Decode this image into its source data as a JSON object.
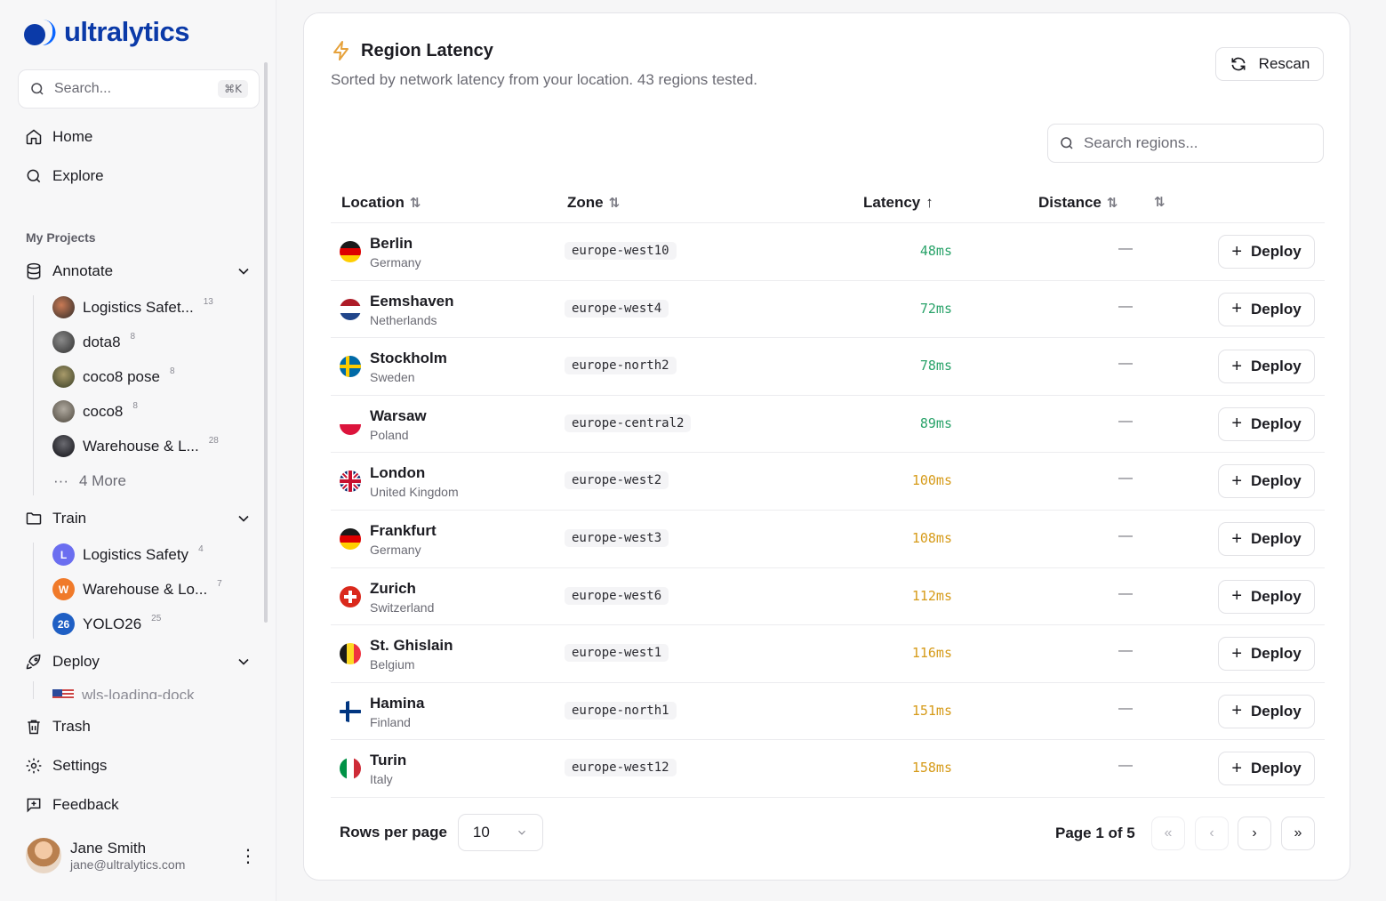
{
  "app": {
    "name": "ultralytics"
  },
  "sidebar": {
    "search_placeholder": "Search...",
    "search_shortcut": "⌘K",
    "nav": [
      {
        "label": "Home",
        "icon": "home-icon"
      },
      {
        "label": "Explore",
        "icon": "search-icon"
      }
    ],
    "section_label": "My Projects",
    "annotate": {
      "label": "Annotate",
      "items": [
        {
          "label": "Logistics Safet...",
          "count": "13"
        },
        {
          "label": "dota8",
          "count": "8"
        },
        {
          "label": "coco8 pose",
          "count": "8"
        },
        {
          "label": "coco8",
          "count": "8"
        },
        {
          "label": "Warehouse & L...",
          "count": "28"
        }
      ],
      "more_label": "4 More"
    },
    "train": {
      "label": "Train",
      "items": [
        {
          "label": "Logistics Safety",
          "count": "4",
          "badge": "L",
          "color": "#6b6ef0"
        },
        {
          "label": "Warehouse & Lo...",
          "count": "7",
          "badge": "W",
          "color": "#f07a2a"
        },
        {
          "label": "YOLO26",
          "count": "25",
          "badge": "26",
          "color": "#1f5fc4"
        }
      ]
    },
    "deploy": {
      "label": "Deploy",
      "items": [
        {
          "label": "wls-loading-dock"
        }
      ]
    },
    "bottom_nav": [
      {
        "label": "Trash"
      },
      {
        "label": "Settings"
      },
      {
        "label": "Feedback"
      }
    ],
    "user": {
      "name": "Jane Smith",
      "email": "jane@ultralytics.com"
    }
  },
  "main": {
    "title": "Region Latency",
    "subtitle": "Sorted by network latency from your location. 43 regions tested.",
    "rescan_label": "Rescan",
    "region_search_placeholder": "Search regions...",
    "columns": [
      "Location",
      "Zone",
      "Latency",
      "Distance"
    ],
    "rows": [
      {
        "city": "Berlin",
        "country": "Germany",
        "zone": "europe-west10",
        "latency": "48ms",
        "distance": "—",
        "tier": "good",
        "flag": "de"
      },
      {
        "city": "Eemshaven",
        "country": "Netherlands",
        "zone": "europe-west4",
        "latency": "72ms",
        "distance": "—",
        "tier": "good",
        "flag": "nl"
      },
      {
        "city": "Stockholm",
        "country": "Sweden",
        "zone": "europe-north2",
        "latency": "78ms",
        "distance": "—",
        "tier": "good",
        "flag": "se"
      },
      {
        "city": "Warsaw",
        "country": "Poland",
        "zone": "europe-central2",
        "latency": "89ms",
        "distance": "—",
        "tier": "good",
        "flag": "pl"
      },
      {
        "city": "London",
        "country": "United Kingdom",
        "zone": "europe-west2",
        "latency": "100ms",
        "distance": "—",
        "tier": "mid",
        "flag": "gb"
      },
      {
        "city": "Frankfurt",
        "country": "Germany",
        "zone": "europe-west3",
        "latency": "108ms",
        "distance": "—",
        "tier": "mid",
        "flag": "de"
      },
      {
        "city": "Zurich",
        "country": "Switzerland",
        "zone": "europe-west6",
        "latency": "112ms",
        "distance": "—",
        "tier": "mid",
        "flag": "ch"
      },
      {
        "city": "St. Ghislain",
        "country": "Belgium",
        "zone": "europe-west1",
        "latency": "116ms",
        "distance": "—",
        "tier": "mid",
        "flag": "be"
      },
      {
        "city": "Hamina",
        "country": "Finland",
        "zone": "europe-north1",
        "latency": "151ms",
        "distance": "—",
        "tier": "mid",
        "flag": "fi"
      },
      {
        "city": "Turin",
        "country": "Italy",
        "zone": "europe-west12",
        "latency": "158ms",
        "distance": "—",
        "tier": "mid",
        "flag": "it"
      }
    ],
    "deploy_label": "Deploy",
    "rows_per_page_label": "Rows per page",
    "rows_per_page_value": "10",
    "page_info": "Page 1 of 5"
  }
}
